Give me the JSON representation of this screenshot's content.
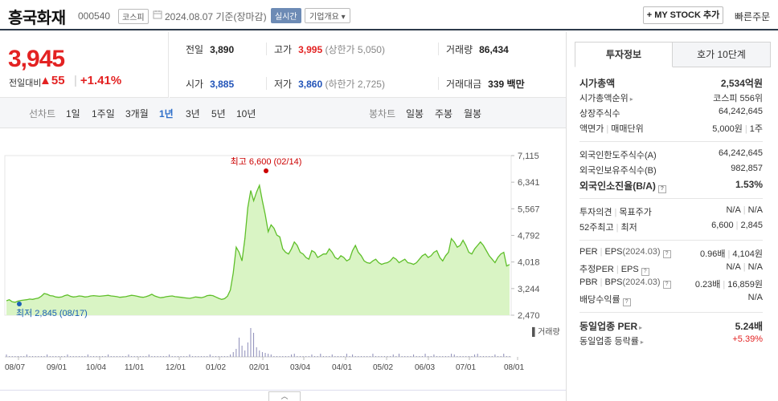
{
  "header": {
    "stock_name": "흥국화재",
    "stock_code": "000540",
    "market": "코스피",
    "date_text": "2024.08.07  기준(장마감)",
    "realtime_label": "실시간",
    "company_info_label": "기업개요 ▾",
    "my_stock_label": "+ MY STOCK 추가",
    "quick_order_label": "빠른주문"
  },
  "price": {
    "current": "3,945",
    "change_label": "전일대비",
    "change_amount": "▲55",
    "change_pct": "+1.41%"
  },
  "stats": {
    "prev_label": "전일",
    "prev": "3,890",
    "high_label": "고가",
    "high": "3,995",
    "upper_limit": "(상한가 5,050)",
    "volume_label": "거래량",
    "volume": "86,434",
    "open_label": "시가",
    "open": "3,885",
    "low_label": "저가",
    "low": "3,860",
    "lower_limit": "(하한가 2,725)",
    "amount_label": "거래대금",
    "amount": "339 백만"
  },
  "tabs": {
    "line_chart": "선차트",
    "periods": [
      "1일",
      "1주일",
      "3개월",
      "1년",
      "3년",
      "5년",
      "10년"
    ],
    "active_period": "1년",
    "candle_chart": "봉차트",
    "candle_periods": [
      "일봉",
      "주봉",
      "월봉"
    ]
  },
  "chart_data": {
    "type": "area",
    "title": "",
    "y_ticks": [
      "7,115",
      "6,341",
      "5,567",
      "4,792",
      "4,018",
      "3,244",
      "2,470"
    ],
    "ylim": [
      2470,
      7115
    ],
    "x_ticks": [
      "08/07",
      "09/01",
      "10/04",
      "11/01",
      "12/01",
      "01/02",
      "02/01",
      "03/04",
      "04/01",
      "05/02",
      "06/03",
      "07/01",
      "08/01"
    ],
    "high_annotation": "최고 6,600 (02/14)",
    "low_annotation": "최저 2,845 (08/17)",
    "volume_label": "거래량",
    "color": "#5fbf2a",
    "fill": "#d9f4c4",
    "series": [
      {
        "values": [
          2890,
          2920,
          2860,
          2845,
          2880,
          2900,
          2910,
          2920,
          2940,
          2930,
          2950,
          2970,
          3020,
          3100,
          3080,
          3040,
          3030,
          3000,
          2990,
          3000,
          3040,
          3060,
          3020,
          3000,
          3010,
          3030,
          3020,
          3000,
          3010,
          3030,
          3040,
          3030,
          3020,
          3030,
          3040,
          3050,
          3030,
          3020,
          3010,
          2990,
          3000,
          3010,
          3030,
          3050,
          3040,
          3020,
          3000,
          2990,
          3010,
          3040,
          3080,
          3030,
          3000,
          2980,
          2990,
          3010,
          3020,
          3030,
          3010,
          3000,
          2990,
          2980,
          2970,
          2960,
          2980,
          3000,
          2990,
          2980,
          3000,
          3040,
          3050,
          3040,
          3000,
          2960,
          2930,
          2950,
          3020,
          3200,
          3700,
          4450,
          4300,
          4050,
          4700,
          5600,
          6100,
          5800,
          6050,
          6250,
          5800,
          5400,
          4900,
          5100,
          5000,
          4800,
          4750,
          4400,
          4300,
          4250,
          4400,
          4600,
          4500,
          4300,
          4250,
          4150,
          4100,
          4350,
          4300,
          4150,
          4200,
          4250,
          4250,
          4400,
          4300,
          4150,
          4100,
          4200,
          4150,
          4050,
          4100,
          4350,
          4500,
          4300,
          4200,
          4050,
          4000,
          3980,
          4050,
          4100,
          4000,
          3950,
          3980,
          4000,
          4050,
          4150,
          4100,
          4000,
          4050,
          4100,
          4000,
          3980,
          3950,
          4000,
          4100,
          4200,
          4250,
          4150,
          4200,
          4300,
          4350,
          4150,
          4050,
          4200,
          4300,
          4700,
          4600,
          4450,
          4500,
          4650,
          4500,
          4300,
          4250,
          4400,
          4500,
          4600,
          4500,
          4350,
          4200,
          4100,
          4000,
          4150,
          4250,
          4300,
          3900,
          3945
        ]
      }
    ]
  },
  "invest_panel": {
    "tab_info": "투자정보",
    "tab_quote": "호가 10단계",
    "market_cap_label": "시가총액",
    "market_cap": "2,534억원",
    "rank_label": "시가총액순위",
    "rank": "코스피 556위",
    "shares_label": "상장주식수",
    "shares": "64,242,645",
    "face_label": "액면가",
    "unit_label": "매매단위",
    "face_value": "5,000원",
    "unit_value": "1주",
    "foreign_limit_label": "외국인한도주식수(A)",
    "foreign_limit": "64,242,645",
    "foreign_own_label": "외국인보유주식수(B)",
    "foreign_own": "982,857",
    "foreign_ratio_label": "외국인소진율(B/A)",
    "foreign_ratio": "1.53%",
    "opinion_label": "투자의견",
    "target_label": "목표주가",
    "opinion": "N/A",
    "target": "N/A",
    "w52_label": "52주최고",
    "w52_low_label": "최저",
    "w52_high": "6,600",
    "w52_low": "2,845",
    "per_label": "PER",
    "eps_label": "EPS",
    "eps_period": "(2024.03)",
    "per": "0.96배",
    "eps": "4,104원",
    "est_per_label": "추정PER",
    "est_eps_label": "EPS",
    "est_per": "N/A",
    "est_eps": "N/A",
    "pbr_label": "PBR",
    "bps_label": "BPS",
    "bps_period": "(2024.03)",
    "pbr": "0.23배",
    "bps": "16,859원",
    "div_label": "배당수익률",
    "div": "N/A",
    "ind_per_label": "동일업종 PER",
    "ind_per": "5.24배",
    "ind_rate_label": "동일업종 등락률",
    "ind_rate": "+5.39%"
  }
}
